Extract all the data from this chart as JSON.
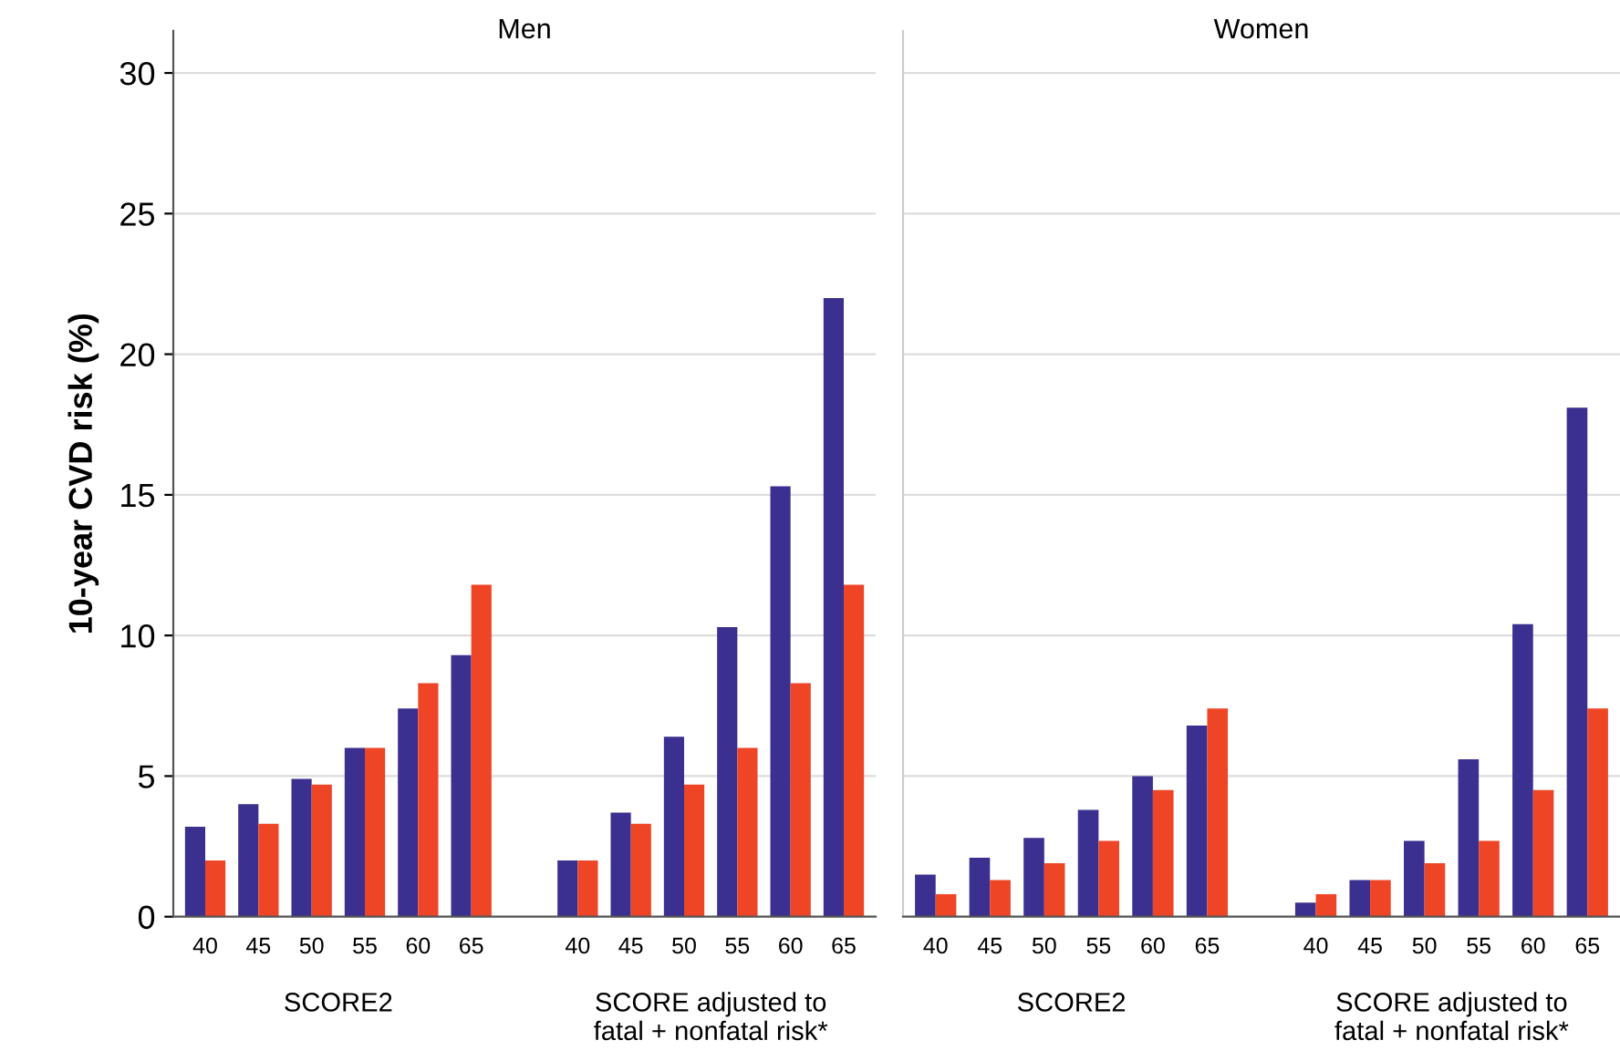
{
  "chart_data": [
    {
      "type": "bar",
      "title": "Men",
      "ylabel": "10-year CVD risk (%)",
      "categories": [
        "40",
        "45",
        "50",
        "55",
        "60",
        "65",
        null,
        "40",
        "45",
        "50",
        "55",
        "60",
        "65"
      ],
      "series": [
        {
          "color": "#3b2f8f",
          "values": [
            3.2,
            4.0,
            4.9,
            6.0,
            7.4,
            9.3,
            null,
            2.0,
            3.7,
            6.4,
            10.3,
            15.3,
            22.0
          ]
        },
        {
          "color": "#ee4526",
          "values": [
            2.0,
            3.3,
            4.7,
            6.0,
            8.3,
            11.8,
            null,
            2.0,
            3.3,
            4.7,
            6.0,
            8.3,
            11.8
          ]
        }
      ],
      "annotations": [
        "SCORE2",
        "SCORE adjusted to\nfatal + nonfatal risk*"
      ],
      "ylim": [
        0,
        31.5
      ],
      "yticks": [
        0,
        5,
        10,
        15,
        20,
        25,
        30
      ],
      "grid": "y"
    },
    {
      "type": "bar",
      "title": "Women",
      "categories": [
        "40",
        "45",
        "50",
        "55",
        "60",
        "65",
        null,
        "40",
        "45",
        "50",
        "55",
        "60",
        "65"
      ],
      "series": [
        {
          "color": "#3b2f8f",
          "values": [
            1.5,
            2.1,
            2.8,
            3.8,
            5.0,
            6.8,
            null,
            0.5,
            1.3,
            2.7,
            5.6,
            10.4,
            18.1
          ]
        },
        {
          "color": "#ee4526",
          "values": [
            0.8,
            1.3,
            1.9,
            2.7,
            4.5,
            7.4,
            null,
            0.8,
            1.3,
            1.9,
            2.7,
            4.5,
            7.4
          ]
        }
      ],
      "annotations": [
        "SCORE2",
        "SCORE adjusted to\nfatal + nonfatal risk*"
      ],
      "ylim": [
        0,
        31.5
      ],
      "yticks": [
        0,
        5,
        10,
        15,
        20,
        25,
        30
      ],
      "grid": "y",
      "tick_labels": "x"
    }
  ]
}
